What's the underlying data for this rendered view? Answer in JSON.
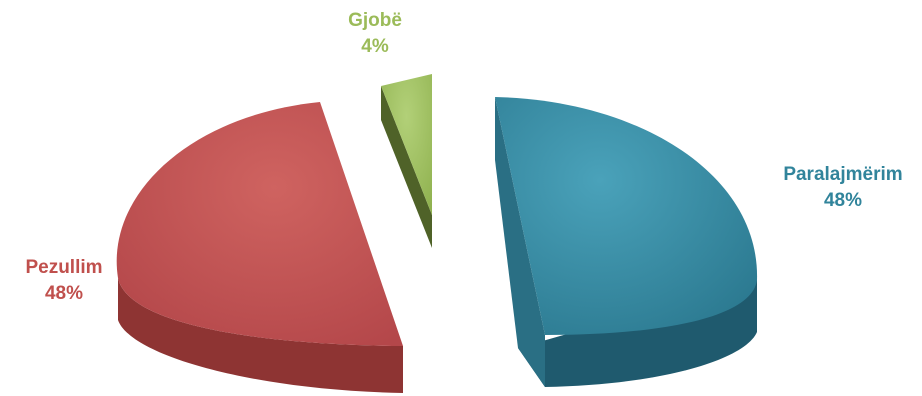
{
  "chart_data": {
    "type": "pie",
    "style": "3d-exploded",
    "slices": [
      {
        "label": "Paralajmërim",
        "value": 48,
        "value_label": "48%",
        "color": "#31849b"
      },
      {
        "label": "Pezullim",
        "value": 48,
        "value_label": "48%",
        "color": "#c0504d"
      },
      {
        "label": "Gjobë",
        "value": 4,
        "value_label": "4%",
        "color": "#9bbb59"
      }
    ]
  }
}
